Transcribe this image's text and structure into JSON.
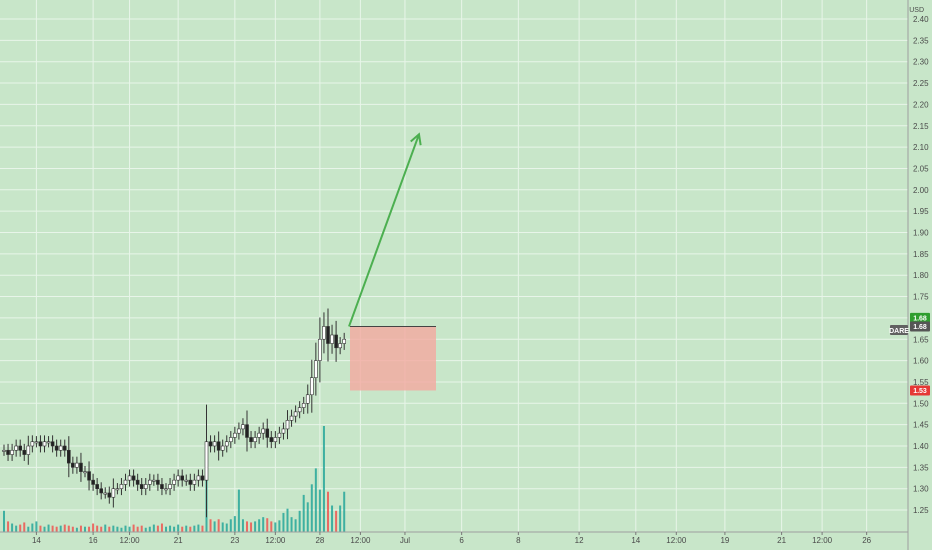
{
  "chart_data": {
    "type": "candlestick",
    "currency_label": "USD",
    "symbol_label": "DARE",
    "y_ticks": [
      "2.40",
      "2.35",
      "2.30",
      "2.25",
      "2.20",
      "2.15",
      "2.10",
      "2.05",
      "2.00",
      "1.95",
      "1.90",
      "1.85",
      "1.80",
      "1.75",
      "1.70",
      "1.65",
      "1.60",
      "1.55",
      "1.50",
      "1.45",
      "1.40",
      "1.35",
      "1.30",
      "1.25"
    ],
    "ylim": [
      1.215,
      2.42
    ],
    "x_ticks": [
      {
        "label": "14",
        "i": 8
      },
      {
        "label": "16",
        "i": 22
      },
      {
        "label": "12:00",
        "i": 31
      },
      {
        "label": "21",
        "i": 43
      },
      {
        "label": "23",
        "i": 57
      },
      {
        "label": "12:00",
        "i": 67
      },
      {
        "label": "28",
        "i": 78
      },
      {
        "label": "12:00",
        "i": 88
      },
      {
        "label": "Jul",
        "i": 99
      },
      {
        "label": "6",
        "i": 113
      },
      {
        "label": "8",
        "i": 127
      },
      {
        "label": "12",
        "i": 142
      },
      {
        "label": "14",
        "i": 156
      },
      {
        "label": "12:00",
        "i": 166
      },
      {
        "label": "19",
        "i": 178
      },
      {
        "label": "21",
        "i": 192
      },
      {
        "label": "12:00",
        "i": 202
      },
      {
        "label": "26",
        "i": 213
      }
    ],
    "price_badges": [
      {
        "label": "1.68",
        "color": "#2e9e2e"
      },
      {
        "label": "1.68",
        "color": "#555555"
      },
      {
        "label": "1.53",
        "color": "#e53935"
      }
    ],
    "colors": {
      "up": "#26a69a",
      "down": "#ef5350",
      "candle_body": "#ffffff",
      "candle_outline": "#333333",
      "arrow": "#4caf50",
      "box_fill": "#f4a9a0",
      "box_stroke": "#444444",
      "grid": "#e8f5e9",
      "background": "#c8e6c9"
    },
    "closes": [
      1.39,
      1.38,
      1.39,
      1.4,
      1.39,
      1.38,
      1.4,
      1.41,
      1.41,
      1.4,
      1.41,
      1.41,
      1.4,
      1.39,
      1.4,
      1.39,
      1.36,
      1.35,
      1.36,
      1.34,
      1.34,
      1.32,
      1.31,
      1.3,
      1.29,
      1.29,
      1.28,
      1.3,
      1.3,
      1.31,
      1.32,
      1.33,
      1.32,
      1.31,
      1.3,
      1.31,
      1.32,
      1.32,
      1.31,
      1.3,
      1.3,
      1.31,
      1.32,
      1.33,
      1.32,
      1.32,
      1.31,
      1.32,
      1.33,
      1.32,
      1.41,
      1.4,
      1.41,
      1.39,
      1.4,
      1.41,
      1.42,
      1.43,
      1.44,
      1.45,
      1.42,
      1.41,
      1.42,
      1.43,
      1.44,
      1.42,
      1.41,
      1.42,
      1.43,
      1.44,
      1.46,
      1.47,
      1.48,
      1.49,
      1.5,
      1.52,
      1.56,
      1.6,
      1.65,
      1.68,
      1.64,
      1.66,
      1.63,
      1.64,
      1.65
    ],
    "volumes": [
      0.2,
      0.1,
      0.08,
      0.06,
      0.07,
      0.09,
      0.05,
      0.08,
      0.1,
      0.06,
      0.05,
      0.07,
      0.06,
      0.05,
      0.06,
      0.07,
      0.06,
      0.05,
      0.04,
      0.06,
      0.05,
      0.05,
      0.08,
      0.06,
      0.05,
      0.07,
      0.05,
      0.06,
      0.05,
      0.04,
      0.06,
      0.05,
      0.07,
      0.05,
      0.06,
      0.04,
      0.05,
      0.07,
      0.06,
      0.08,
      0.05,
      0.06,
      0.05,
      0.07,
      0.05,
      0.06,
      0.05,
      0.06,
      0.07,
      0.06,
      0.85,
      0.12,
      0.1,
      0.12,
      0.09,
      0.08,
      0.12,
      0.15,
      0.4,
      0.12,
      0.1,
      0.09,
      0.1,
      0.12,
      0.14,
      0.13,
      0.1,
      0.09,
      0.11,
      0.18,
      0.22,
      0.14,
      0.12,
      0.2,
      0.35,
      0.28,
      0.45,
      0.6,
      0.4,
      1.0,
      0.38,
      0.25,
      0.2,
      0.25,
      0.38
    ]
  }
}
